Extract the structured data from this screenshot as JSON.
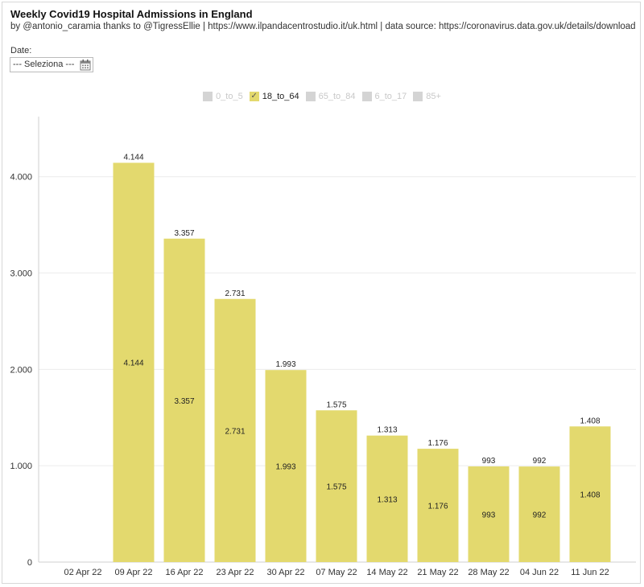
{
  "header": {
    "title": "Weekly Covid19 Hospital Admissions in England",
    "subtitle": "by @antonio_caramia thanks to @TigressEllie | https://www.ilpandacentrostudio.it/uk.html | data source: https://coronavirus.data.gov.uk/details/download"
  },
  "filter": {
    "label": "Date:",
    "value": "--- Seleziona ---",
    "icon": "calendar-icon"
  },
  "legend": [
    {
      "label": "0_to_5",
      "active": false
    },
    {
      "label": "18_to_64",
      "active": true
    },
    {
      "label": "65_to_84",
      "active": false
    },
    {
      "label": "6_to_17",
      "active": false
    },
    {
      "label": "85+",
      "active": false
    }
  ],
  "colors": {
    "bar": "#e3d96e",
    "inactive": "#d4d4d4",
    "grid": "#ececec",
    "axis": "#cfcfcf"
  },
  "chart_data": {
    "type": "bar",
    "categories": [
      "02 Apr 22",
      "09 Apr 22",
      "16 Apr 22",
      "23 Apr 22",
      "30 Apr 22",
      "07 May 22",
      "14 May 22",
      "21 May 22",
      "28 May 22",
      "04 Jun 22",
      "11 Jun 22"
    ],
    "series": [
      {
        "name": "18_to_64",
        "values": [
          null,
          4144,
          3357,
          2731,
          1993,
          1575,
          1313,
          1176,
          993,
          992,
          1408
        ]
      }
    ],
    "value_labels": [
      null,
      "4.144",
      "3.357",
      "2.731",
      "1.993",
      "1.575",
      "1.313",
      "1.176",
      "993",
      "992",
      "1.408"
    ],
    "yticks": [
      0,
      1000,
      2000,
      3000,
      4000
    ],
    "ytick_labels": [
      "0",
      "1.000",
      "2.000",
      "3.000",
      "4.000"
    ],
    "ylim": [
      0,
      4540
    ],
    "grid": true,
    "legend_position": "top-center",
    "xlabel": "",
    "ylabel": ""
  }
}
